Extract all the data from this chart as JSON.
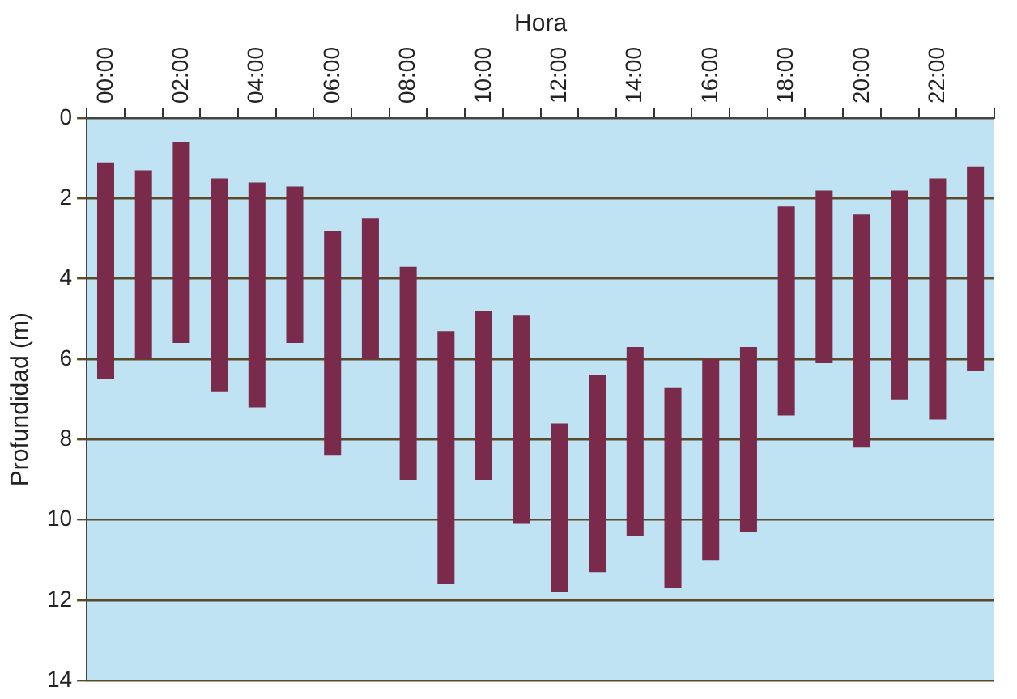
{
  "chart_data": {
    "type": "bar",
    "xlabel": "Hora",
    "ylabel": "Profundidad (m)",
    "categories": [
      "00:00",
      null,
      "02:00",
      null,
      "04:00",
      null,
      "06:00",
      null,
      "08:00",
      null,
      "10:00",
      null,
      "12:00",
      null,
      "14:00",
      null,
      "16:00",
      null,
      "18:00",
      null,
      "20:00",
      null,
      "22:00",
      null
    ],
    "base": [
      1.1,
      1.3,
      0.6,
      1.5,
      1.6,
      1.7,
      2.8,
      2.5,
      3.7,
      5.3,
      4.8,
      4.9,
      7.6,
      6.4,
      5.7,
      6.7,
      6.0,
      5.7,
      2.2,
      1.8,
      2.4,
      1.8,
      1.5,
      1.2
    ],
    "values": [
      5.4,
      4.7,
      5.0,
      5.3,
      5.6,
      3.9,
      5.6,
      3.5,
      5.3,
      6.3,
      4.2,
      5.2,
      4.2,
      4.9,
      4.7,
      5.0,
      5.0,
      4.6,
      5.2,
      4.3,
      5.8,
      5.2,
      6.0,
      5.1
    ],
    "color": "#7a2a4a",
    "ylim": [
      14,
      0
    ],
    "yticks": [
      0,
      2,
      4,
      6,
      8,
      10,
      12,
      14
    ],
    "grid": "y",
    "legend": false
  }
}
